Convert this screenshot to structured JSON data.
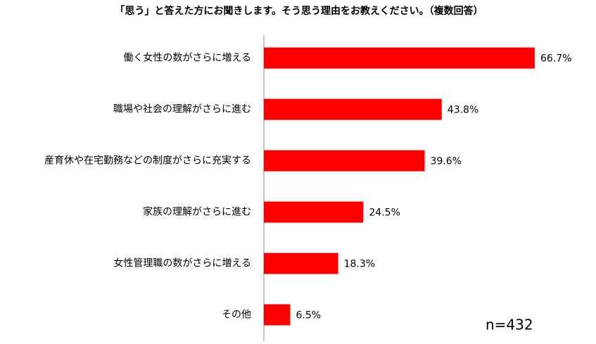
{
  "chart_data": {
    "type": "barh",
    "title": "「思う」と答えた方にお聞きします。そう思う理由をお教えください。（複数回答）",
    "categories": [
      "働く女性の数がさらに増える",
      "職場や社会の理解がさらに進む",
      "産育休や在宅勤務などの制度がさらに充実する",
      "家族の理解がさらに進む",
      "女性管理職の数がさらに増える",
      "その他"
    ],
    "values": [
      66.7,
      43.8,
      39.6,
      24.5,
      18.3,
      6.5
    ],
    "value_labels": [
      "66.7%",
      "43.8%",
      "39.6%",
      "24.5%",
      "18.3%",
      "6.5%"
    ],
    "color": "#ff0000",
    "xlim": [
      0,
      70
    ],
    "annotation": "n=432"
  }
}
